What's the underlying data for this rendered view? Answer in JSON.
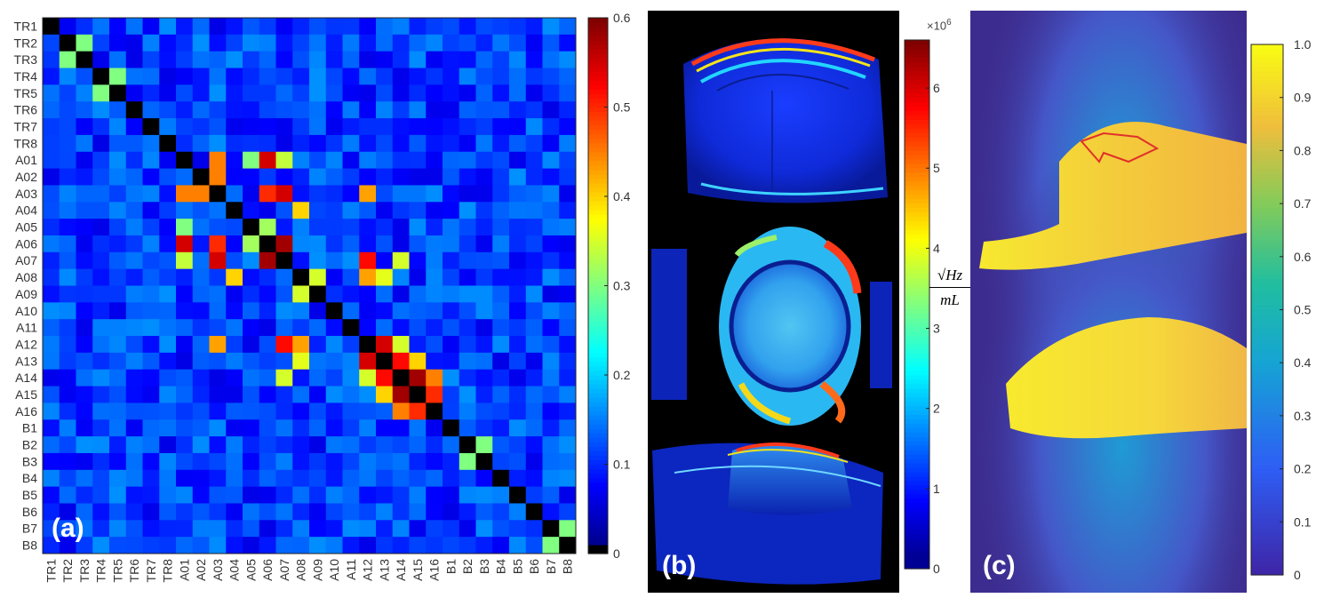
{
  "panels": {
    "a": {
      "tag": "(a)",
      "chart_data": {
        "type": "heatmap",
        "labels": [
          "TR1",
          "TR2",
          "TR3",
          "TR4",
          "TR5",
          "TR6",
          "TR7",
          "TR8",
          "A01",
          "A02",
          "A03",
          "A04",
          "A05",
          "A06",
          "A07",
          "A08",
          "A09",
          "A10",
          "A11",
          "A12",
          "A13",
          "A14",
          "A15",
          "A16",
          "B1",
          "B2",
          "B3",
          "B4",
          "B5",
          "B6",
          "B7",
          "B8"
        ],
        "colorbar": {
          "min": 0,
          "max": 0.6,
          "ticks": [
            "0",
            "0.1",
            "0.2",
            "0.3",
            "0.4",
            "0.5",
            "0.6"
          ]
        },
        "colormap": "jet-dark-low",
        "notable_cells": [
          {
            "r": "A01",
            "c": "A03",
            "v": 0.45
          },
          {
            "r": "A01",
            "c": "A06",
            "v": 0.55
          },
          {
            "r": "A01",
            "c": "A07",
            "v": 0.34
          },
          {
            "r": "A01",
            "c": "A05",
            "v": 0.3
          },
          {
            "r": "A03",
            "c": "A02",
            "v": 0.45
          },
          {
            "r": "A03",
            "c": "A06",
            "v": 0.5
          },
          {
            "r": "A03",
            "c": "A07",
            "v": 0.55
          },
          {
            "r": "A03",
            "c": "A12",
            "v": 0.43
          },
          {
            "r": "A04",
            "c": "A08",
            "v": 0.4
          },
          {
            "r": "A05",
            "c": "A06",
            "v": 0.32
          },
          {
            "r": "A06",
            "c": "A01",
            "v": 0.55
          },
          {
            "r": "A06",
            "c": "A03",
            "v": 0.5
          },
          {
            "r": "A06",
            "c": "A07",
            "v": 0.58
          },
          {
            "r": "A07",
            "c": "A03",
            "v": 0.55
          },
          {
            "r": "A07",
            "c": "A06",
            "v": 0.58
          },
          {
            "r": "A07",
            "c": "A12",
            "v": 0.52
          },
          {
            "r": "A07",
            "c": "A14",
            "v": 0.35
          },
          {
            "r": "A08",
            "c": "A04",
            "v": 0.4
          },
          {
            "r": "A08",
            "c": "A09",
            "v": 0.35
          },
          {
            "r": "A09",
            "c": "A08",
            "v": 0.35
          },
          {
            "r": "A12",
            "c": "A03",
            "v": 0.43
          },
          {
            "r": "A12",
            "c": "A07",
            "v": 0.52
          },
          {
            "r": "A12",
            "c": "A08",
            "v": 0.43
          },
          {
            "r": "A12",
            "c": "A13",
            "v": 0.55
          },
          {
            "r": "A12",
            "c": "A14",
            "v": 0.35
          },
          {
            "r": "A13",
            "c": "A12",
            "v": 0.55
          },
          {
            "r": "A13",
            "c": "A14",
            "v": 0.52
          },
          {
            "r": "A13",
            "c": "A08",
            "v": 0.36
          },
          {
            "r": "A13",
            "c": "A15",
            "v": 0.4
          },
          {
            "r": "A14",
            "c": "A12",
            "v": 0.35
          },
          {
            "r": "A14",
            "c": "A13",
            "v": 0.52
          },
          {
            "r": "A14",
            "c": "A15",
            "v": 0.58
          },
          {
            "r": "A14",
            "c": "A16",
            "v": 0.45
          },
          {
            "r": "A15",
            "c": "A14",
            "v": 0.58
          },
          {
            "r": "A15",
            "c": "A13",
            "v": 0.4
          },
          {
            "r": "A15",
            "c": "A16",
            "v": 0.5
          },
          {
            "r": "A16",
            "c": "A14",
            "v": 0.45
          },
          {
            "r": "A16",
            "c": "A15",
            "v": 0.5
          },
          {
            "r": "TR2",
            "c": "TR3",
            "v": 0.3
          },
          {
            "r": "TR4",
            "c": "TR5",
            "v": 0.3
          },
          {
            "r": "B2",
            "c": "B3",
            "v": 0.3
          },
          {
            "r": "B7",
            "c": "B8",
            "v": 0.3
          }
        ]
      }
    },
    "b": {
      "tag": "(b)",
      "colorbar": {
        "min": 0,
        "max": 6.6,
        "ticks": [
          "0",
          "1",
          "2",
          "3",
          "4",
          "5",
          "6"
        ],
        "exponent": "×10",
        "exponent_power": "6"
      },
      "unit_num": "√Hz",
      "unit_den": "mL"
    },
    "c": {
      "tag": "(c)",
      "colorbar": {
        "min": 0,
        "max": 1.0,
        "ticks": [
          "0",
          "0.1",
          "0.2",
          "0.3",
          "0.4",
          "0.5",
          "0.6",
          "0.7",
          "0.8",
          "0.9",
          "1.0"
        ]
      },
      "roi_color": "#e0302a"
    }
  }
}
